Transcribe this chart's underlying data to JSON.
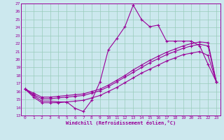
{
  "xlabel": "Windchill (Refroidissement éolien,°C)",
  "background_color": "#cce8ee",
  "line_color": "#990099",
  "grid_color": "#99ccbb",
  "xlim": [
    -0.5,
    23.5
  ],
  "ylim": [
    13,
    27
  ],
  "xticks": [
    0,
    1,
    2,
    3,
    4,
    5,
    6,
    7,
    8,
    9,
    10,
    11,
    12,
    13,
    14,
    15,
    16,
    17,
    18,
    19,
    20,
    21,
    22,
    23
  ],
  "yticks": [
    13,
    14,
    15,
    16,
    17,
    18,
    19,
    20,
    21,
    22,
    23,
    24,
    25,
    26,
    27
  ],
  "series1_x": [
    0,
    1,
    2,
    3,
    4,
    5,
    6,
    7,
    8,
    9,
    10,
    11,
    12,
    13,
    14,
    15,
    16,
    17,
    18,
    19,
    20,
    21,
    22,
    23
  ],
  "series1_y": [
    16.3,
    15.5,
    14.8,
    14.8,
    14.7,
    14.7,
    13.9,
    13.5,
    14.9,
    17.2,
    21.2,
    22.6,
    24.1,
    26.8,
    25.0,
    24.1,
    24.3,
    22.3,
    22.3,
    22.3,
    22.3,
    21.7,
    19.4,
    17.2
  ],
  "series2_x": [
    0,
    1,
    2,
    3,
    4,
    5,
    6,
    7,
    8,
    9,
    10,
    11,
    12,
    13,
    14,
    15,
    16,
    17,
    18,
    19,
    20,
    21,
    22,
    23
  ],
  "series2_y": [
    16.3,
    15.8,
    15.3,
    15.3,
    15.4,
    15.5,
    15.6,
    15.7,
    16.0,
    16.3,
    16.8,
    17.4,
    18.0,
    18.7,
    19.3,
    19.9,
    20.4,
    20.9,
    21.3,
    21.7,
    22.0,
    22.2,
    22.1,
    17.2
  ],
  "series3_x": [
    0,
    1,
    2,
    3,
    4,
    5,
    6,
    7,
    8,
    9,
    10,
    11,
    12,
    13,
    14,
    15,
    16,
    17,
    18,
    19,
    20,
    21,
    22,
    23
  ],
  "series3_y": [
    16.3,
    15.6,
    15.1,
    15.1,
    15.2,
    15.3,
    15.4,
    15.5,
    15.8,
    16.1,
    16.6,
    17.2,
    17.8,
    18.4,
    19.0,
    19.6,
    20.1,
    20.6,
    21.0,
    21.4,
    21.7,
    21.9,
    21.7,
    17.2
  ],
  "series4_x": [
    0,
    1,
    2,
    3,
    4,
    5,
    6,
    7,
    8,
    9,
    10,
    11,
    12,
    13,
    14,
    15,
    16,
    17,
    18,
    19,
    20,
    21,
    22,
    23
  ],
  "series4_y": [
    16.3,
    15.3,
    14.6,
    14.6,
    14.6,
    14.7,
    14.8,
    14.9,
    15.2,
    15.5,
    16.0,
    16.5,
    17.1,
    17.7,
    18.3,
    18.8,
    19.3,
    19.8,
    20.2,
    20.6,
    20.8,
    21.0,
    20.5,
    17.2
  ]
}
